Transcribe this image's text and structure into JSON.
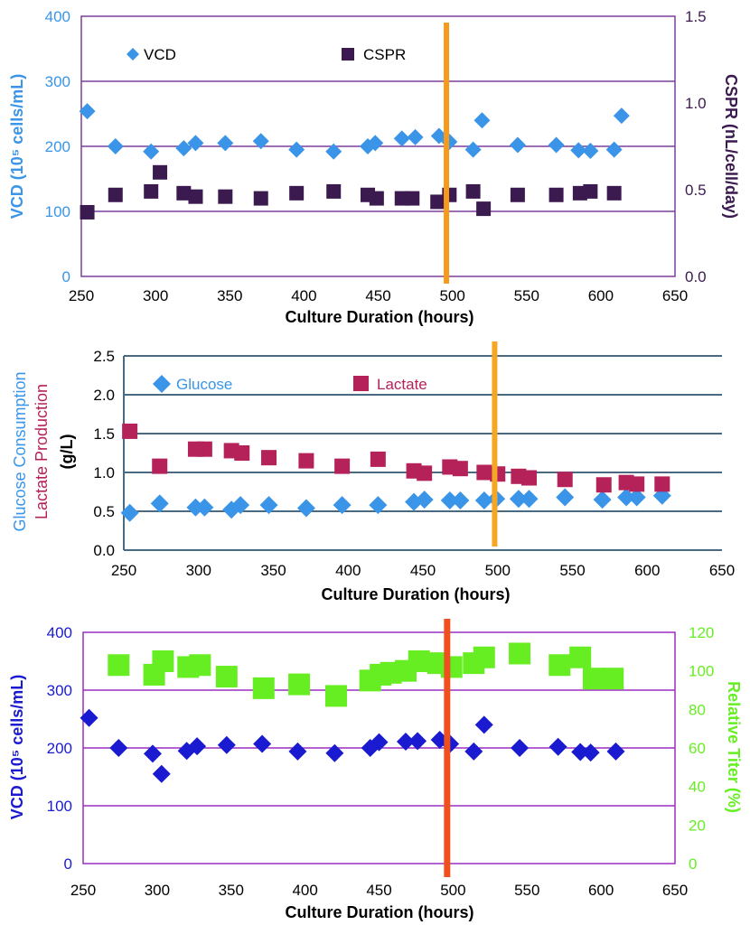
{
  "colors": {
    "vcd_blue_light": "#3a95e8",
    "cspr_purple": "#3b1a4f",
    "purple_axis": "#7a3e9d",
    "slate_grid": "#4a6a82",
    "glucose_blue": "#3a95e8",
    "lactate_red": "#b5225a",
    "vcd_blue_dark": "#1a1ad0",
    "titer_green": "#66ee22",
    "violet_grid": "#9a2fc0",
    "orange_line": "#f59a1b",
    "red_line": "#f0501e"
  },
  "chart_data": [
    {
      "type": "scatter",
      "xlabel": "Culture Duration (hours)",
      "ylabel_left": "VCD (10⁵ cells/mL)",
      "ylabel_right": "CSPR (nL/cell/day)",
      "xlim": [
        250,
        650
      ],
      "ylim_left": [
        0,
        400
      ],
      "ylim_right": [
        0,
        1.5
      ],
      "x_ticks": [
        "250",
        "300",
        "350",
        "400",
        "450",
        "500",
        "550",
        "600",
        "650"
      ],
      "y_left_ticks": [
        "0",
        "100",
        "200",
        "300",
        "400"
      ],
      "y_right_ticks": [
        "0.0",
        "0.5",
        "1.0",
        "1.5"
      ],
      "vertical_line_x": 496,
      "legend": [
        "VCD",
        "CSPR"
      ],
      "series": [
        {
          "name": "VCD",
          "axis": "left",
          "marker": "diamond",
          "x": [
            254,
            273,
            297,
            319,
            327,
            347,
            371,
            395,
            420,
            443,
            448,
            466,
            475,
            491,
            498,
            514,
            520,
            544,
            570,
            585,
            593,
            609,
            614
          ],
          "y": [
            254,
            200,
            192,
            197,
            205,
            205,
            208,
            195,
            192,
            200,
            205,
            212,
            214,
            216,
            207,
            195,
            240,
            202,
            202,
            194,
            193,
            195,
            247
          ]
        },
        {
          "name": "CSPR",
          "axis": "right",
          "marker": "square",
          "x": [
            254,
            273,
            297,
            303,
            319,
            327,
            347,
            371,
            395,
            420,
            443,
            449,
            466,
            473,
            490,
            498,
            514,
            521,
            544,
            570,
            586,
            593,
            609
          ],
          "y": [
            0.37,
            0.47,
            0.49,
            0.6,
            0.48,
            0.46,
            0.46,
            0.45,
            0.48,
            0.49,
            0.47,
            0.45,
            0.45,
            0.45,
            0.43,
            0.47,
            0.49,
            0.39,
            0.47,
            0.47,
            0.48,
            0.49,
            0.48
          ]
        }
      ]
    },
    {
      "type": "scatter",
      "xlabel": "Culture Duration (hours)",
      "ylabel_left": [
        "Glucose Consumption",
        "Lactate Production",
        "(g/L)"
      ],
      "xlim": [
        250,
        650
      ],
      "ylim": [
        0,
        2.5
      ],
      "x_ticks": [
        "250",
        "300",
        "350",
        "400",
        "450",
        "500",
        "550",
        "600",
        "650"
      ],
      "y_ticks": [
        "0.0",
        "0.5",
        "1.0",
        "1.5",
        "2.0",
        "2.5"
      ],
      "vertical_line_x": 498,
      "legend": [
        "Glucose",
        "Lactate"
      ],
      "series": [
        {
          "name": "Glucose",
          "marker": "diamond",
          "x": [
            254,
            274,
            298,
            304,
            322,
            328,
            347,
            372,
            396,
            420,
            444,
            451,
            468,
            475,
            491,
            499,
            514,
            521,
            545,
            570,
            586,
            593,
            610
          ],
          "y": [
            0.48,
            0.6,
            0.55,
            0.55,
            0.52,
            0.58,
            0.58,
            0.54,
            0.58,
            0.58,
            0.62,
            0.65,
            0.64,
            0.64,
            0.64,
            0.66,
            0.66,
            0.66,
            0.68,
            0.65,
            0.68,
            0.68,
            0.7
          ]
        },
        {
          "name": "Lactate",
          "marker": "square",
          "x": [
            254,
            274,
            298,
            304,
            322,
            329,
            347,
            372,
            396,
            420,
            444,
            451,
            468,
            475,
            491,
            500,
            514,
            521,
            545,
            571,
            586,
            593,
            610
          ],
          "y": [
            1.53,
            1.08,
            1.3,
            1.3,
            1.28,
            1.25,
            1.19,
            1.15,
            1.08,
            1.17,
            1.02,
            0.99,
            1.07,
            1.05,
            1.0,
            0.98,
            0.95,
            0.93,
            0.91,
            0.84,
            0.87,
            0.85,
            0.85
          ]
        }
      ]
    },
    {
      "type": "scatter",
      "xlabel": "Culture Duration (hours)",
      "ylabel_left": "VCD (10⁵ cells/mL)",
      "ylabel_right": "Relative Titer (%)",
      "xlim": [
        250,
        650
      ],
      "ylim_left": [
        0,
        400
      ],
      "ylim_right": [
        0,
        120
      ],
      "x_ticks": [
        "250",
        "300",
        "350",
        "400",
        "450",
        "500",
        "550",
        "600",
        "650"
      ],
      "y_left_ticks": [
        "0",
        "100",
        "200",
        "300",
        "400"
      ],
      "y_right_ticks": [
        "0",
        "20",
        "40",
        "60",
        "80",
        "100",
        "120"
      ],
      "vertical_line_x": 496,
      "series": [
        {
          "name": "VCD",
          "axis": "left",
          "marker": "diamond",
          "x": [
            254,
            274,
            297,
            303,
            320,
            327,
            347,
            371,
            395,
            420,
            444,
            450,
            468,
            476,
            491,
            498,
            514,
            521,
            545,
            571,
            586,
            593,
            610
          ],
          "y": [
            252,
            200,
            190,
            155,
            195,
            203,
            205,
            207,
            194,
            191,
            200,
            210,
            211,
            212,
            214,
            207,
            194,
            240,
            200,
            202,
            193,
            192,
            194
          ]
        },
        {
          "name": "Relative Titer",
          "axis": "right",
          "marker": "square",
          "x": [
            274,
            298,
            304,
            321,
            329,
            347,
            372,
            396,
            421,
            444,
            451,
            458,
            468,
            477,
            490,
            499,
            514,
            521,
            545,
            572,
            586,
            595,
            608
          ],
          "y": [
            103,
            98,
            105,
            102,
            103,
            97,
            91,
            93,
            87,
            95,
            98,
            99,
            100,
            105,
            104,
            102,
            104,
            107,
            109,
            103,
            107,
            96,
            96
          ]
        }
      ]
    }
  ]
}
